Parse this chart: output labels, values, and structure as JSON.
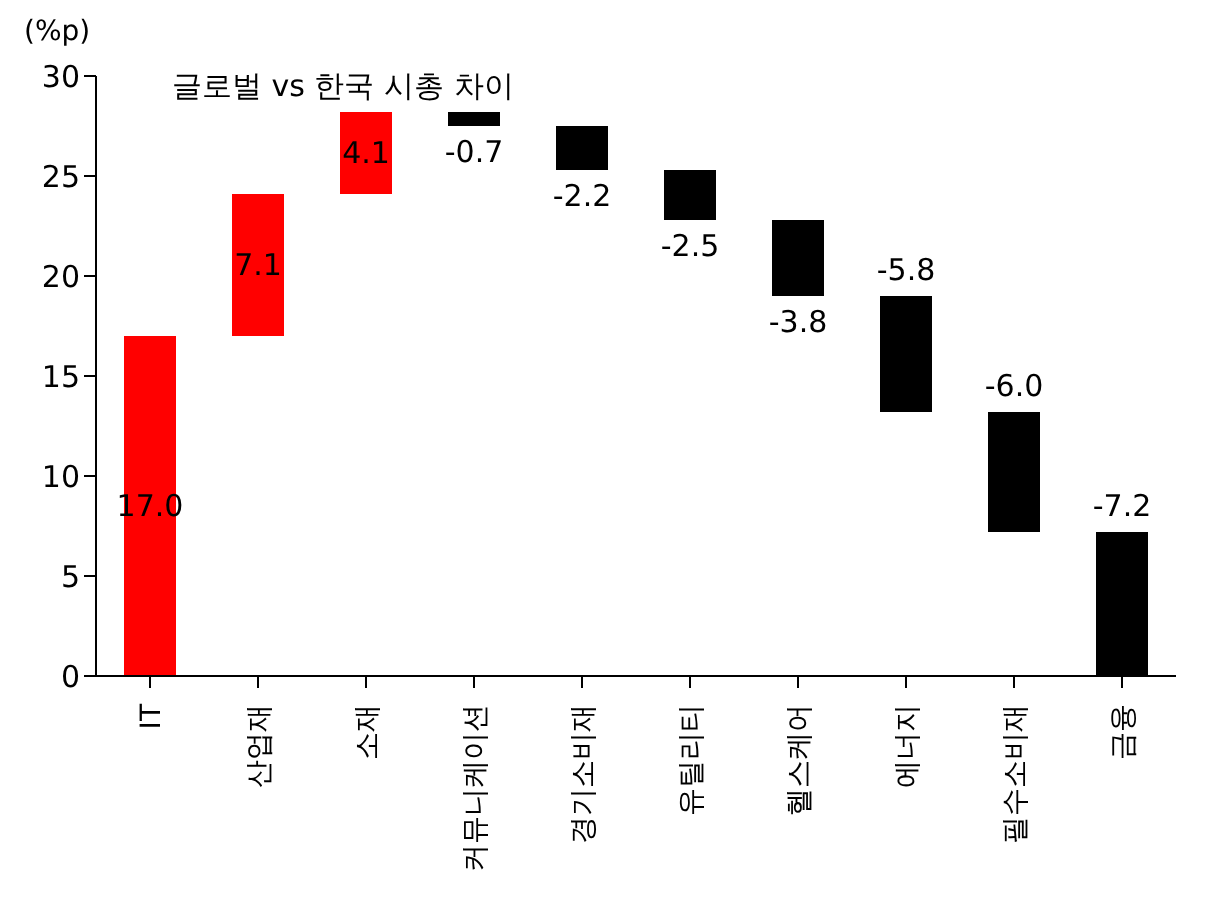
{
  "chart_data": {
    "type": "bar",
    "title": "글로벌 vs 한국 시총 차이",
    "ylabel": "(%p)",
    "categories": [
      "IT",
      "산업재",
      "소재",
      "커뮤니케이션",
      "경기소비재",
      "유틸리티",
      "헬스케어",
      "에너지",
      "필수소비재",
      "금융"
    ],
    "values": [
      17.0,
      7.1,
      4.1,
      -0.7,
      -2.2,
      -2.5,
      -3.8,
      -5.8,
      -6.0,
      -7.2
    ],
    "base": [
      0,
      17.0,
      24.1,
      28.2,
      27.5,
      25.3,
      22.8,
      19.0,
      13.2,
      7.2
    ],
    "colors": [
      "#ff0000",
      "#ff0000",
      "#ff0000",
      "#000000",
      "#000000",
      "#000000",
      "#000000",
      "#000000",
      "#000000",
      "#000000"
    ],
    "value_labels": [
      "17.0",
      "7.1",
      "4.1",
      "-0.7",
      "-2.2",
      "-2.5",
      "-3.8",
      "-5.8",
      "-6.0",
      "-7.2"
    ],
    "ylim": [
      0,
      30
    ],
    "yticks": [
      0,
      5,
      10,
      15,
      20,
      25,
      30
    ],
    "grid": false,
    "legend": false
  }
}
